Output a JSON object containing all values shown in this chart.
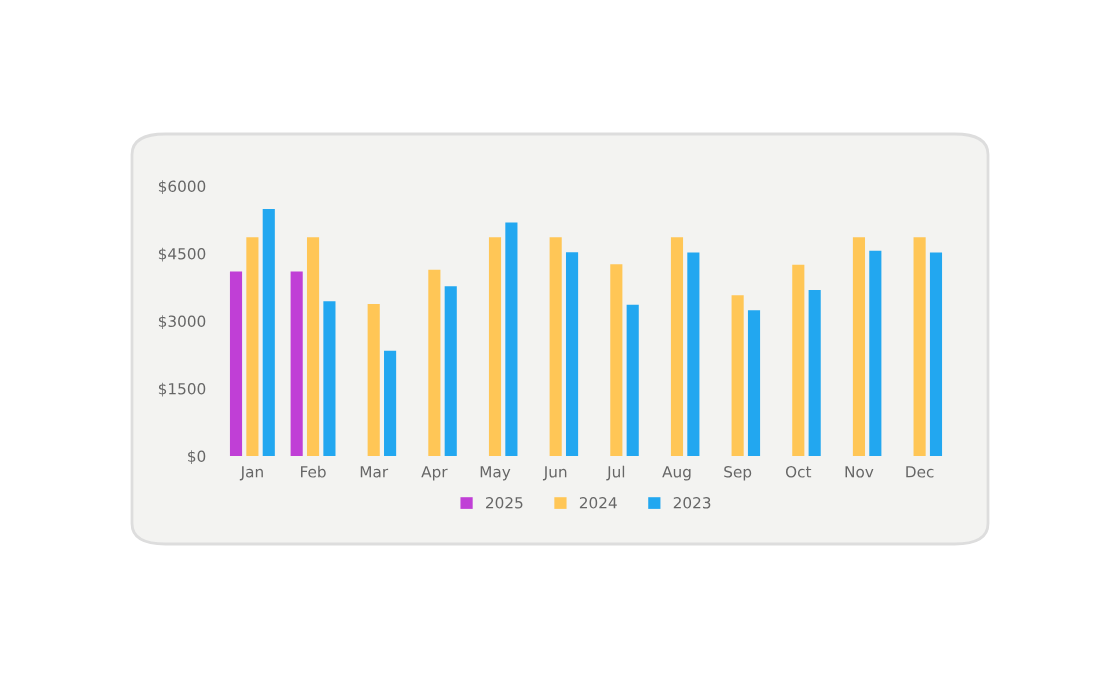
{
  "chart_data": {
    "type": "bar",
    "categories": [
      "Jan",
      "Feb",
      "Mar",
      "Apr",
      "May",
      "Jun",
      "Jul",
      "Aug",
      "Sep",
      "Oct",
      "Nov",
      "Dec"
    ],
    "series": [
      {
        "name": "2025",
        "color": "#c03fd6",
        "values": [
          4100,
          4100,
          null,
          null,
          null,
          null,
          null,
          null,
          null,
          null,
          null,
          null
        ]
      },
      {
        "name": "2024",
        "color": "#ffc656",
        "values": [
          4860,
          4860,
          3380,
          4140,
          4860,
          4860,
          4260,
          4860,
          3570,
          4250,
          4860,
          4860
        ]
      },
      {
        "name": "2023",
        "color": "#22a7f0",
        "values": [
          5490,
          3440,
          2340,
          3770,
          5190,
          4530,
          3360,
          4520,
          3240,
          3690,
          4560,
          4520
        ]
      }
    ],
    "ylim": [
      0,
      6000
    ],
    "yticks": [
      {
        "value": 0,
        "label": "$0"
      },
      {
        "value": 1500,
        "label": "$1500"
      },
      {
        "value": 3000,
        "label": "$3000"
      },
      {
        "value": 4500,
        "label": "$4500"
      },
      {
        "value": 6000,
        "label": "$6000"
      }
    ],
    "grid": false,
    "legend": "bottom"
  }
}
